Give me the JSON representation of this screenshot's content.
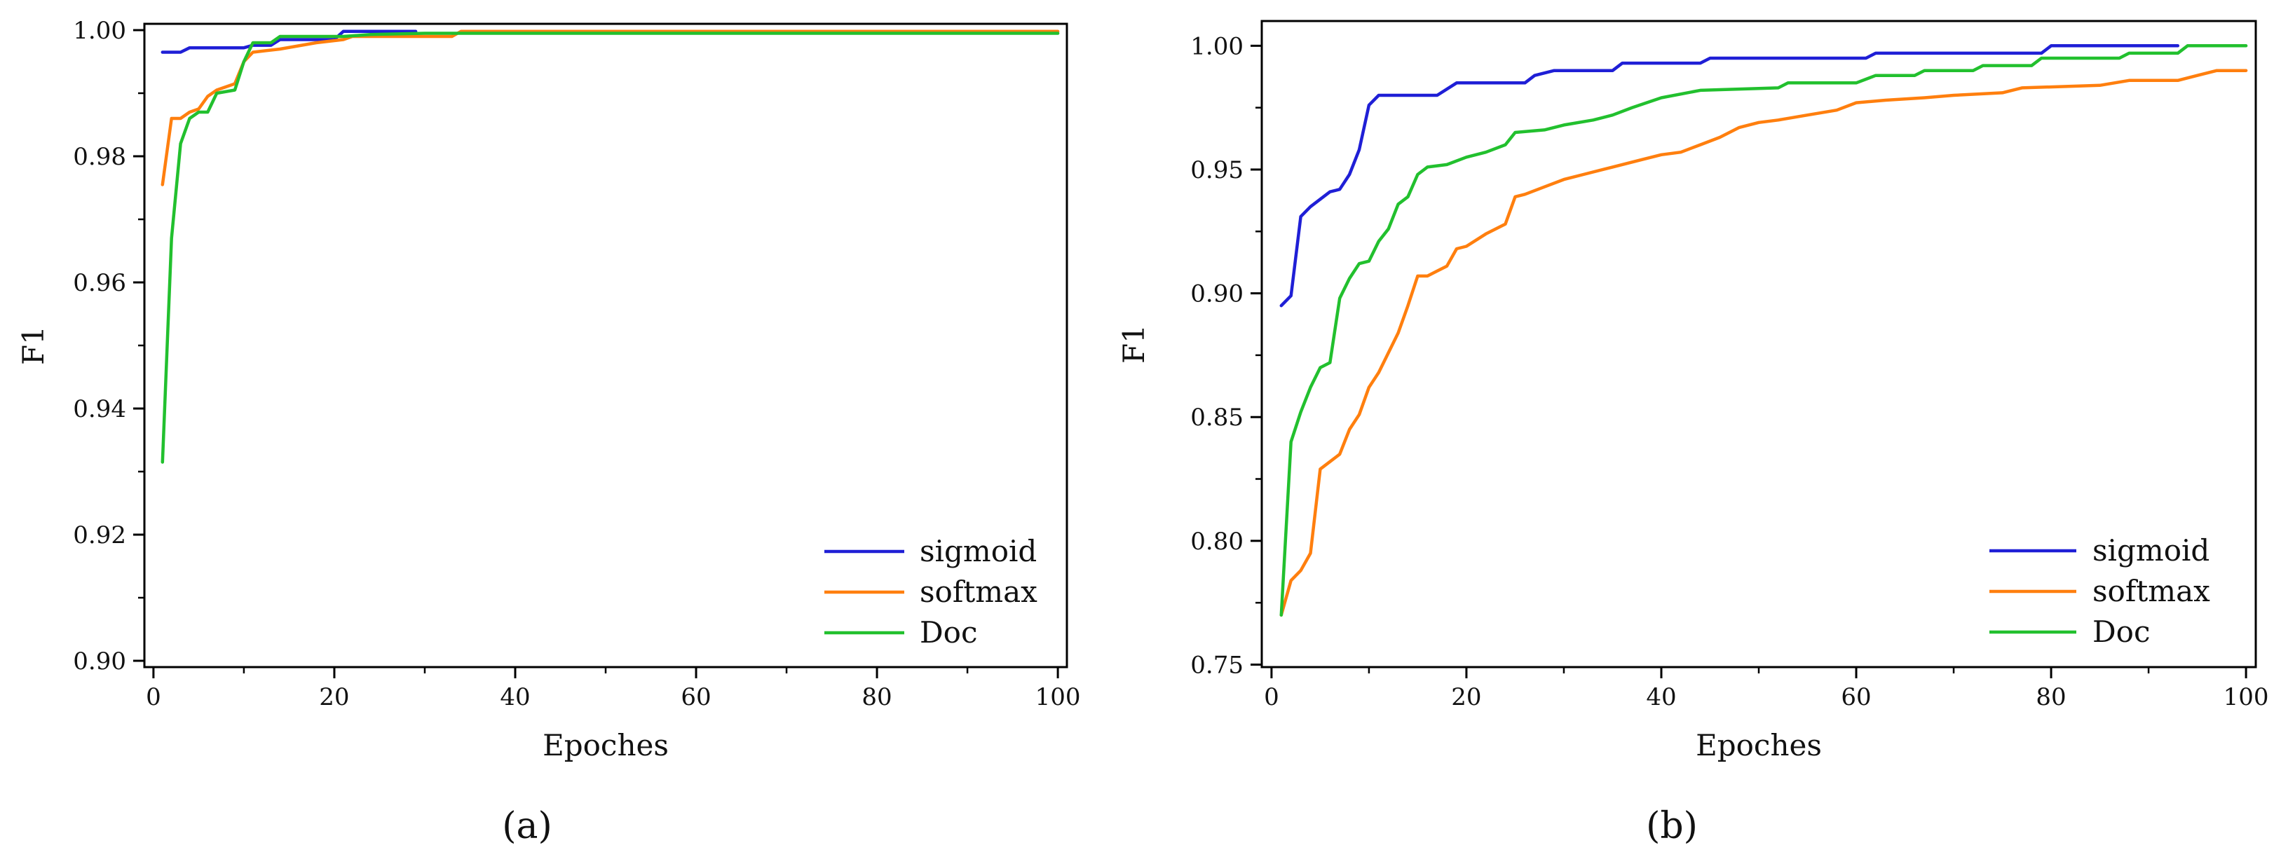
{
  "chart_data": [
    {
      "type": "line",
      "panel_label": "(a)",
      "xlabel": "Epoches",
      "ylabel": "F1",
      "xlim": [
        -1,
        101
      ],
      "ylim": [
        0.899,
        1.001
      ],
      "xticks": [
        0,
        20,
        40,
        60,
        80,
        100
      ],
      "xtick_labels": [
        "0",
        "20",
        "40",
        "60",
        "80",
        "100"
      ],
      "yticks": [
        0.9,
        0.92,
        0.94,
        0.96,
        0.98,
        1.0
      ],
      "ytick_labels": [
        "0.90",
        "0.92",
        "0.94",
        "0.96",
        "0.98",
        "1.00"
      ],
      "legend_position": "bottom-right",
      "series": [
        {
          "name": "sigmoid",
          "color": "#1f1fd6",
          "points": [
            [
              1,
              0.9965
            ],
            [
              2,
              0.9965
            ],
            [
              3,
              0.9965
            ],
            [
              4,
              0.9972
            ],
            [
              10,
              0.9972
            ],
            [
              11,
              0.9976
            ],
            [
              13,
              0.9976
            ],
            [
              14,
              0.9985
            ],
            [
              20,
              0.9985
            ],
            [
              21,
              0.9998
            ],
            [
              29,
              0.9998
            ]
          ]
        },
        {
          "name": "softmax",
          "color": "#ff7f0e",
          "points": [
            [
              1,
              0.9755
            ],
            [
              2,
              0.986
            ],
            [
              3,
              0.986
            ],
            [
              4,
              0.987
            ],
            [
              5,
              0.9875
            ],
            [
              6,
              0.9895
            ],
            [
              7,
              0.9905
            ],
            [
              9,
              0.9915
            ],
            [
              10,
              0.995
            ],
            [
              11,
              0.9965
            ],
            [
              14,
              0.997
            ],
            [
              16,
              0.9975
            ],
            [
              18,
              0.998
            ],
            [
              21,
              0.9985
            ],
            [
              22,
              0.999
            ],
            [
              33,
              0.999
            ],
            [
              34,
              0.9998
            ],
            [
              100,
              0.9998
            ]
          ]
        },
        {
          "name": "Doc",
          "color": "#22c02e",
          "points": [
            [
              1,
              0.9315
            ],
            [
              2,
              0.967
            ],
            [
              3,
              0.982
            ],
            [
              4,
              0.986
            ],
            [
              5,
              0.987
            ],
            [
              6,
              0.987
            ],
            [
              7,
              0.99
            ],
            [
              9,
              0.9905
            ],
            [
              10,
              0.995
            ],
            [
              11,
              0.998
            ],
            [
              13,
              0.998
            ],
            [
              14,
              0.999
            ],
            [
              21,
              0.999
            ],
            [
              24,
              0.9993
            ],
            [
              30,
              0.9995
            ],
            [
              100,
              0.9995
            ]
          ]
        }
      ]
    },
    {
      "type": "line",
      "panel_label": "(b)",
      "xlabel": "Epoches",
      "ylabel": "F1",
      "xlim": [
        -1,
        101
      ],
      "ylim": [
        0.749,
        1.01
      ],
      "xticks": [
        0,
        20,
        40,
        60,
        80,
        100
      ],
      "xtick_labels": [
        "0",
        "20",
        "40",
        "60",
        "80",
        "100"
      ],
      "yticks": [
        0.75,
        0.8,
        0.85,
        0.9,
        0.95,
        1.0
      ],
      "ytick_labels": [
        "0.75",
        "0.80",
        "0.85",
        "0.90",
        "0.95",
        "1.00"
      ],
      "legend_position": "bottom-right",
      "series": [
        {
          "name": "sigmoid",
          "color": "#1f1fd6",
          "points": [
            [
              1,
              0.895
            ],
            [
              2,
              0.899
            ],
            [
              3,
              0.931
            ],
            [
              4,
              0.935
            ],
            [
              5,
              0.938
            ],
            [
              6,
              0.941
            ],
            [
              7,
              0.942
            ],
            [
              8,
              0.948
            ],
            [
              9,
              0.958
            ],
            [
              10,
              0.976
            ],
            [
              11,
              0.98
            ],
            [
              17,
              0.98
            ],
            [
              19,
              0.985
            ],
            [
              26,
              0.985
            ],
            [
              27,
              0.988
            ],
            [
              29,
              0.99
            ],
            [
              35,
              0.99
            ],
            [
              36,
              0.993
            ],
            [
              44,
              0.993
            ],
            [
              45,
              0.995
            ],
            [
              61,
              0.995
            ],
            [
              62,
              0.997
            ],
            [
              79,
              0.997
            ],
            [
              80,
              1.0
            ],
            [
              93,
              1.0
            ]
          ]
        },
        {
          "name": "softmax",
          "color": "#ff7f0e",
          "points": [
            [
              1,
              0.77
            ],
            [
              2,
              0.784
            ],
            [
              3,
              0.788
            ],
            [
              4,
              0.795
            ],
            [
              5,
              0.829
            ],
            [
              6,
              0.832
            ],
            [
              7,
              0.835
            ],
            [
              8,
              0.845
            ],
            [
              9,
              0.851
            ],
            [
              10,
              0.862
            ],
            [
              11,
              0.868
            ],
            [
              12,
              0.876
            ],
            [
              13,
              0.884
            ],
            [
              14,
              0.895
            ],
            [
              15,
              0.907
            ],
            [
              16,
              0.907
            ],
            [
              17,
              0.909
            ],
            [
              18,
              0.911
            ],
            [
              19,
              0.918
            ],
            [
              20,
              0.919
            ],
            [
              22,
              0.924
            ],
            [
              24,
              0.928
            ],
            [
              25,
              0.939
            ],
            [
              26,
              0.94
            ],
            [
              28,
              0.943
            ],
            [
              30,
              0.946
            ],
            [
              32,
              0.948
            ],
            [
              35,
              0.951
            ],
            [
              38,
              0.954
            ],
            [
              40,
              0.956
            ],
            [
              42,
              0.957
            ],
            [
              44,
              0.96
            ],
            [
              46,
              0.963
            ],
            [
              48,
              0.967
            ],
            [
              50,
              0.969
            ],
            [
              52,
              0.97
            ],
            [
              55,
              0.972
            ],
            [
              58,
              0.974
            ],
            [
              60,
              0.977
            ],
            [
              63,
              0.978
            ],
            [
              67,
              0.979
            ],
            [
              70,
              0.98
            ],
            [
              75,
              0.981
            ],
            [
              77,
              0.983
            ],
            [
              85,
              0.984
            ],
            [
              88,
              0.986
            ],
            [
              93,
              0.986
            ],
            [
              95,
              0.988
            ],
            [
              97,
              0.99
            ],
            [
              100,
              0.99
            ]
          ]
        },
        {
          "name": "Doc",
          "color": "#22c02e",
          "points": [
            [
              1,
              0.77
            ],
            [
              2,
              0.84
            ],
            [
              3,
              0.852
            ],
            [
              4,
              0.862
            ],
            [
              5,
              0.87
            ],
            [
              6,
              0.872
            ],
            [
              7,
              0.898
            ],
            [
              8,
              0.906
            ],
            [
              9,
              0.912
            ],
            [
              10,
              0.913
            ],
            [
              11,
              0.921
            ],
            [
              12,
              0.926
            ],
            [
              13,
              0.936
            ],
            [
              14,
              0.939
            ],
            [
              15,
              0.948
            ],
            [
              16,
              0.951
            ],
            [
              18,
              0.952
            ],
            [
              20,
              0.955
            ],
            [
              22,
              0.957
            ],
            [
              24,
              0.96
            ],
            [
              25,
              0.965
            ],
            [
              28,
              0.966
            ],
            [
              30,
              0.968
            ],
            [
              33,
              0.97
            ],
            [
              35,
              0.972
            ],
            [
              37,
              0.975
            ],
            [
              40,
              0.979
            ],
            [
              44,
              0.982
            ],
            [
              52,
              0.983
            ],
            [
              53,
              0.985
            ],
            [
              60,
              0.985
            ],
            [
              62,
              0.988
            ],
            [
              66,
              0.988
            ],
            [
              67,
              0.99
            ],
            [
              72,
              0.99
            ],
            [
              73,
              0.992
            ],
            [
              78,
              0.992
            ],
            [
              79,
              0.995
            ],
            [
              87,
              0.995
            ],
            [
              88,
              0.997
            ],
            [
              93,
              0.997
            ],
            [
              94,
              1.0
            ],
            [
              100,
              1.0
            ]
          ]
        }
      ]
    }
  ]
}
